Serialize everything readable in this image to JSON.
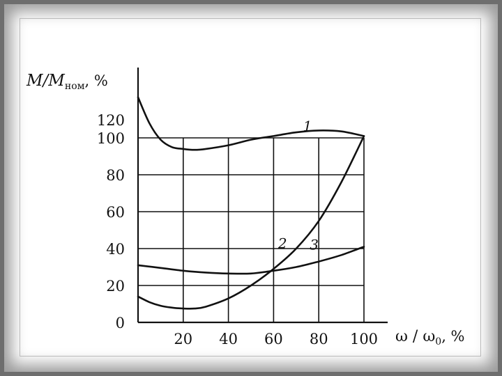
{
  "chart_data": {
    "type": "line",
    "y_axis": {
      "var": "M/M",
      "sub": "ном",
      "unit": ", %"
    },
    "x_axis": {
      "var": "ω / ω",
      "sub": "0",
      "unit": ", %"
    },
    "xlim": [
      0,
      100
    ],
    "ylim": [
      0,
      100
    ],
    "x_ticks": [
      20,
      40,
      60,
      80,
      100
    ],
    "y_ticks": [
      0,
      20,
      40,
      60,
      80,
      100,
      120
    ],
    "grid": true,
    "series": [
      {
        "name": "1",
        "x": [
          0,
          5,
          10,
          15,
          20,
          25,
          30,
          40,
          50,
          60,
          70,
          80,
          90,
          100
        ],
        "y": [
          122,
          108,
          99,
          95,
          94,
          93.5,
          94,
          96,
          99,
          101,
          103,
          104,
          103.5,
          101
        ]
      },
      {
        "name": "2",
        "x": [
          0,
          5,
          10,
          15,
          20,
          25,
          30,
          40,
          50,
          60,
          70,
          80,
          90,
          100
        ],
        "y": [
          14,
          11,
          9,
          8,
          7.5,
          7.5,
          8.5,
          13,
          20,
          29,
          40,
          55,
          76,
          101
        ]
      },
      {
        "name": "3",
        "x": [
          0,
          10,
          20,
          30,
          40,
          50,
          60,
          70,
          80,
          90,
          100
        ],
        "y": [
          31,
          29.5,
          28,
          27,
          26.5,
          26.5,
          28,
          30,
          33,
          36.5,
          41
        ]
      }
    ]
  }
}
